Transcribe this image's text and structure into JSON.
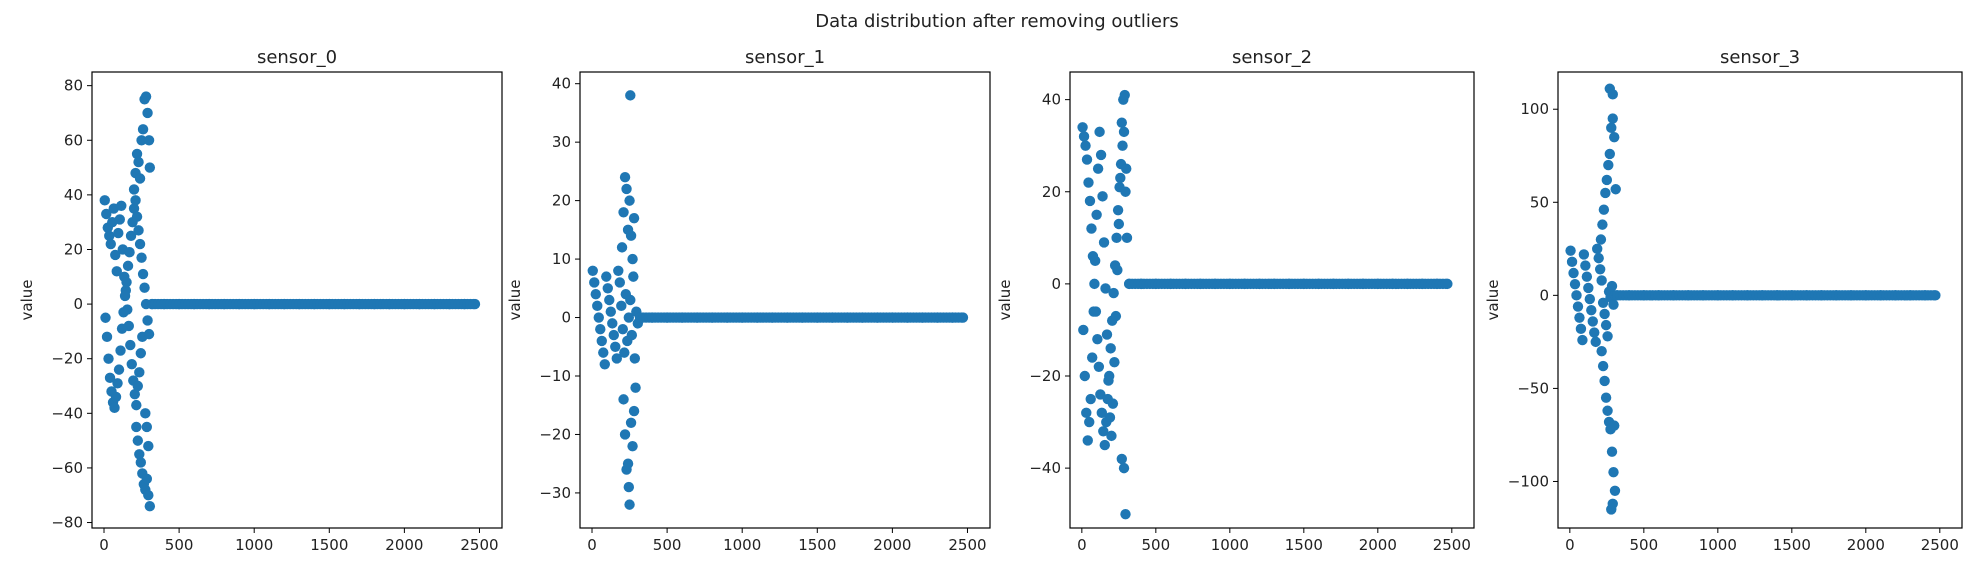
{
  "suptitle": "Data distribution after removing outliers",
  "chart_data": [
    {
      "type": "scatter",
      "title": "sensor_0",
      "xlabel": "",
      "ylabel": "value",
      "xlim": [
        -80,
        2650
      ],
      "ylim": [
        -82,
        85
      ],
      "xticks": [
        0,
        500,
        1000,
        1500,
        2000,
        2500
      ],
      "yticks": [
        -80,
        -60,
        -40,
        -20,
        0,
        20,
        40,
        60,
        80
      ],
      "grid": false,
      "color": "#1f77b4",
      "points": [
        [
          5,
          38
        ],
        [
          15,
          33
        ],
        [
          25,
          28
        ],
        [
          35,
          25
        ],
        [
          45,
          22
        ],
        [
          55,
          30
        ],
        [
          65,
          35
        ],
        [
          75,
          18
        ],
        [
          85,
          12
        ],
        [
          95,
          26
        ],
        [
          105,
          31
        ],
        [
          115,
          36
        ],
        [
          125,
          20
        ],
        [
          135,
          10
        ],
        [
          145,
          5
        ],
        [
          155,
          -2
        ],
        [
          165,
          -8
        ],
        [
          175,
          -15
        ],
        [
          185,
          -22
        ],
        [
          195,
          -28
        ],
        [
          205,
          -33
        ],
        [
          215,
          -37
        ],
        [
          225,
          -30
        ],
        [
          235,
          -25
        ],
        [
          245,
          -18
        ],
        [
          255,
          -12
        ],
        [
          10,
          -5
        ],
        [
          20,
          -12
        ],
        [
          30,
          -20
        ],
        [
          40,
          -27
        ],
        [
          50,
          -32
        ],
        [
          60,
          -36
        ],
        [
          70,
          -38
        ],
        [
          80,
          -34
        ],
        [
          90,
          -29
        ],
        [
          100,
          -24
        ],
        [
          110,
          -17
        ],
        [
          120,
          -9
        ],
        [
          130,
          -3
        ],
        [
          140,
          3
        ],
        [
          150,
          8
        ],
        [
          160,
          14
        ],
        [
          170,
          19
        ],
        [
          180,
          25
        ],
        [
          190,
          30
        ],
        [
          200,
          35
        ],
        [
          210,
          38
        ],
        [
          220,
          32
        ],
        [
          230,
          27
        ],
        [
          240,
          22
        ],
        [
          250,
          17
        ],
        [
          260,
          11
        ],
        [
          270,
          6
        ],
        [
          280,
          0
        ],
        [
          290,
          -6
        ],
        [
          300,
          -11
        ],
        [
          200,
          42
        ],
        [
          210,
          48
        ],
        [
          220,
          55
        ],
        [
          230,
          52
        ],
        [
          240,
          46
        ],
        [
          250,
          60
        ],
        [
          260,
          64
        ],
        [
          270,
          75
        ],
        [
          280,
          76
        ],
        [
          290,
          70
        ],
        [
          300,
          60
        ],
        [
          305,
          50
        ],
        [
          215,
          -45
        ],
        [
          225,
          -50
        ],
        [
          235,
          -55
        ],
        [
          245,
          -58
        ],
        [
          255,
          -62
        ],
        [
          265,
          -66
        ],
        [
          275,
          -68
        ],
        [
          285,
          -64
        ],
        [
          295,
          -70
        ],
        [
          305,
          -74
        ],
        [
          275,
          -40
        ],
        [
          285,
          -45
        ],
        [
          295,
          -52
        ],
        [
          320,
          0
        ],
        [
          400,
          0
        ],
        [
          500,
          0
        ],
        [
          600,
          0
        ],
        [
          700,
          0
        ],
        [
          800,
          0
        ],
        [
          900,
          0
        ],
        [
          1000,
          0
        ],
        [
          1100,
          0
        ],
        [
          1200,
          0
        ],
        [
          1300,
          0
        ],
        [
          1400,
          0
        ],
        [
          1500,
          0
        ],
        [
          1600,
          0
        ],
        [
          1700,
          0
        ],
        [
          1800,
          0
        ],
        [
          1900,
          0
        ],
        [
          2000,
          0
        ],
        [
          2100,
          0
        ],
        [
          2200,
          0
        ],
        [
          2300,
          0
        ],
        [
          2400,
          0
        ],
        [
          2470,
          0
        ]
      ]
    },
    {
      "type": "scatter",
      "title": "sensor_1",
      "xlabel": "",
      "ylabel": "value",
      "xlim": [
        -80,
        2650
      ],
      "ylim": [
        -36,
        42
      ],
      "xticks": [
        0,
        500,
        1000,
        1500,
        2000,
        2500
      ],
      "yticks": [
        -30,
        -20,
        -10,
        0,
        10,
        20,
        30,
        40
      ],
      "grid": false,
      "color": "#1f77b4",
      "points": [
        [
          5,
          8
        ],
        [
          15,
          6
        ],
        [
          25,
          4
        ],
        [
          35,
          2
        ],
        [
          45,
          0
        ],
        [
          55,
          -2
        ],
        [
          65,
          -4
        ],
        [
          75,
          -6
        ],
        [
          85,
          -8
        ],
        [
          95,
          7
        ],
        [
          105,
          5
        ],
        [
          115,
          3
        ],
        [
          125,
          1
        ],
        [
          135,
          -1
        ],
        [
          145,
          -3
        ],
        [
          155,
          -5
        ],
        [
          165,
          -7
        ],
        [
          175,
          8
        ],
        [
          185,
          6
        ],
        [
          195,
          2
        ],
        [
          205,
          -2
        ],
        [
          215,
          -6
        ],
        [
          225,
          4
        ],
        [
          235,
          -4
        ],
        [
          245,
          0
        ],
        [
          255,
          3
        ],
        [
          265,
          -3
        ],
        [
          275,
          7
        ],
        [
          285,
          -7
        ],
        [
          295,
          1
        ],
        [
          305,
          -1
        ],
        [
          200,
          12
        ],
        [
          210,
          18
        ],
        [
          220,
          24
        ],
        [
          230,
          22
        ],
        [
          240,
          15
        ],
        [
          250,
          20
        ],
        [
          260,
          14
        ],
        [
          270,
          10
        ],
        [
          280,
          17
        ],
        [
          255,
          38
        ],
        [
          210,
          -14
        ],
        [
          220,
          -20
        ],
        [
          230,
          -26
        ],
        [
          240,
          -25
        ],
        [
          250,
          -32
        ],
        [
          245,
          -29
        ],
        [
          260,
          -18
        ],
        [
          270,
          -22
        ],
        [
          280,
          -16
        ],
        [
          290,
          -12
        ],
        [
          320,
          0
        ],
        [
          400,
          0
        ],
        [
          500,
          0
        ],
        [
          600,
          0
        ],
        [
          700,
          0
        ],
        [
          800,
          0
        ],
        [
          900,
          0
        ],
        [
          1000,
          0
        ],
        [
          1100,
          0
        ],
        [
          1200,
          0
        ],
        [
          1300,
          0
        ],
        [
          1400,
          0
        ],
        [
          1500,
          0
        ],
        [
          1600,
          0
        ],
        [
          1700,
          0
        ],
        [
          1800,
          0
        ],
        [
          1900,
          0
        ],
        [
          2000,
          0
        ],
        [
          2100,
          0
        ],
        [
          2200,
          0
        ],
        [
          2300,
          0
        ],
        [
          2400,
          0
        ],
        [
          2470,
          0
        ]
      ]
    },
    {
      "type": "scatter",
      "title": "sensor_2",
      "xlabel": "",
      "ylabel": "value",
      "xlim": [
        -80,
        2650
      ],
      "ylim": [
        -53,
        46
      ],
      "xticks": [
        0,
        500,
        1000,
        1500,
        2000,
        2500
      ],
      "yticks": [
        -40,
        -20,
        0,
        20,
        40
      ],
      "grid": false,
      "color": "#1f77b4",
      "points": [
        [
          5,
          34
        ],
        [
          15,
          32
        ],
        [
          25,
          30
        ],
        [
          35,
          27
        ],
        [
          45,
          22
        ],
        [
          55,
          18
        ],
        [
          65,
          12
        ],
        [
          75,
          6
        ],
        [
          85,
          0
        ],
        [
          95,
          -6
        ],
        [
          105,
          -12
        ],
        [
          115,
          -18
        ],
        [
          125,
          -24
        ],
        [
          135,
          -28
        ],
        [
          145,
          -32
        ],
        [
          155,
          -35
        ],
        [
          165,
          -30
        ],
        [
          175,
          -25
        ],
        [
          185,
          -20
        ],
        [
          195,
          -14
        ],
        [
          205,
          -8
        ],
        [
          215,
          -2
        ],
        [
          225,
          4
        ],
        [
          235,
          10
        ],
        [
          245,
          16
        ],
        [
          255,
          21
        ],
        [
          265,
          26
        ],
        [
          275,
          30
        ],
        [
          285,
          33
        ],
        [
          295,
          20
        ],
        [
          305,
          10
        ],
        [
          10,
          -10
        ],
        [
          20,
          -20
        ],
        [
          30,
          -28
        ],
        [
          40,
          -34
        ],
        [
          50,
          -30
        ],
        [
          60,
          -25
        ],
        [
          70,
          -16
        ],
        [
          80,
          -6
        ],
        [
          90,
          5
        ],
        [
          100,
          15
        ],
        [
          110,
          25
        ],
        [
          120,
          33
        ],
        [
          130,
          28
        ],
        [
          140,
          19
        ],
        [
          150,
          9
        ],
        [
          160,
          -1
        ],
        [
          170,
          -11
        ],
        [
          180,
          -21
        ],
        [
          190,
          -29
        ],
        [
          200,
          -33
        ],
        [
          210,
          -26
        ],
        [
          220,
          -17
        ],
        [
          230,
          -7
        ],
        [
          240,
          3
        ],
        [
          250,
          13
        ],
        [
          260,
          23
        ],
        [
          270,
          35
        ],
        [
          280,
          40
        ],
        [
          290,
          41
        ],
        [
          300,
          25
        ],
        [
          270,
          -38
        ],
        [
          285,
          -40
        ],
        [
          295,
          -50
        ],
        [
          320,
          0
        ],
        [
          400,
          0
        ],
        [
          500,
          0
        ],
        [
          600,
          0
        ],
        [
          700,
          0
        ],
        [
          800,
          0
        ],
        [
          900,
          0
        ],
        [
          1000,
          0
        ],
        [
          1100,
          0
        ],
        [
          1200,
          0
        ],
        [
          1300,
          0
        ],
        [
          1400,
          0
        ],
        [
          1500,
          0
        ],
        [
          1600,
          0
        ],
        [
          1700,
          0
        ],
        [
          1800,
          0
        ],
        [
          1900,
          0
        ],
        [
          2000,
          0
        ],
        [
          2100,
          0
        ],
        [
          2200,
          0
        ],
        [
          2300,
          0
        ],
        [
          2400,
          0
        ],
        [
          2470,
          0
        ]
      ]
    },
    {
      "type": "scatter",
      "title": "sensor_3",
      "xlabel": "",
      "ylabel": "value",
      "xlim": [
        -80,
        2650
      ],
      "ylim": [
        -125,
        120
      ],
      "xticks": [
        0,
        500,
        1000,
        1500,
        2000,
        2500
      ],
      "yticks": [
        -100,
        -50,
        0,
        50,
        100
      ],
      "grid": false,
      "color": "#1f77b4",
      "points": [
        [
          5,
          24
        ],
        [
          15,
          18
        ],
        [
          25,
          12
        ],
        [
          35,
          6
        ],
        [
          45,
          0
        ],
        [
          55,
          -6
        ],
        [
          65,
          -12
        ],
        [
          75,
          -18
        ],
        [
          85,
          -24
        ],
        [
          95,
          22
        ],
        [
          105,
          16
        ],
        [
          115,
          10
        ],
        [
          125,
          4
        ],
        [
          135,
          -2
        ],
        [
          145,
          -8
        ],
        [
          155,
          -14
        ],
        [
          165,
          -20
        ],
        [
          175,
          -25
        ],
        [
          185,
          25
        ],
        [
          195,
          20
        ],
        [
          205,
          14
        ],
        [
          215,
          8
        ],
        [
          225,
          -4
        ],
        [
          235,
          -10
        ],
        [
          245,
          -16
        ],
        [
          255,
          -22
        ],
        [
          265,
          2
        ],
        [
          275,
          -1
        ],
        [
          285,
          5
        ],
        [
          295,
          -5
        ],
        [
          305,
          0
        ],
        [
          210,
          30
        ],
        [
          220,
          38
        ],
        [
          230,
          46
        ],
        [
          240,
          55
        ],
        [
          250,
          62
        ],
        [
          260,
          70
        ],
        [
          270,
          76
        ],
        [
          280,
          90
        ],
        [
          290,
          95
        ],
        [
          270,
          111
        ],
        [
          290,
          108
        ],
        [
          300,
          85
        ],
        [
          310,
          57
        ],
        [
          215,
          -30
        ],
        [
          225,
          -38
        ],
        [
          235,
          -46
        ],
        [
          245,
          -55
        ],
        [
          255,
          -62
        ],
        [
          265,
          -68
        ],
        [
          275,
          -72
        ],
        [
          285,
          -84
        ],
        [
          295,
          -95
        ],
        [
          305,
          -105
        ],
        [
          280,
          -115
        ],
        [
          290,
          -112
        ],
        [
          300,
          -70
        ],
        [
          320,
          0
        ],
        [
          400,
          0
        ],
        [
          500,
          0
        ],
        [
          600,
          0
        ],
        [
          700,
          0
        ],
        [
          800,
          0
        ],
        [
          900,
          0
        ],
        [
          1000,
          0
        ],
        [
          1100,
          0
        ],
        [
          1200,
          0
        ],
        [
          1300,
          0
        ],
        [
          1400,
          0
        ],
        [
          1500,
          0
        ],
        [
          1600,
          0
        ],
        [
          1700,
          0
        ],
        [
          1800,
          0
        ],
        [
          1900,
          0
        ],
        [
          2000,
          0
        ],
        [
          2100,
          0
        ],
        [
          2200,
          0
        ],
        [
          2300,
          0
        ],
        [
          2400,
          0
        ],
        [
          2470,
          0
        ]
      ]
    }
  ]
}
